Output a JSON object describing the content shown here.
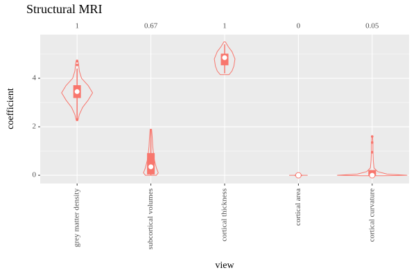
{
  "chart_data": {
    "type": "violin",
    "title": "Structural MRI",
    "x_label": "view",
    "y_label": "coefficient",
    "categories": [
      "grey matter density",
      "subcortical volumes",
      "cortical thickness",
      "cortical area",
      "cortical curvature"
    ],
    "annotations": [
      "1",
      "0.67",
      "1",
      "0",
      "0.05"
    ],
    "color": "#f8766d",
    "violins": [
      {
        "y": [
          2.25,
          2.5,
          2.8,
          3.1,
          3.4,
          3.7,
          4.0,
          4.3,
          4.6,
          4.75
        ],
        "width": [
          0.02,
          0.06,
          0.15,
          0.3,
          0.42,
          0.3,
          0.12,
          0.06,
          0.04,
          0.02
        ]
      },
      {
        "y": [
          0,
          0.1,
          0.3,
          0.6,
          0.9,
          1.2,
          1.5,
          1.9
        ],
        "width": [
          0.15,
          0.2,
          0.15,
          0.1,
          0.07,
          0.05,
          0.04,
          0.02
        ]
      },
      {
        "y": [
          4.15,
          4.3,
          4.5,
          4.8,
          5.1,
          5.3,
          5.5
        ],
        "width": [
          0.12,
          0.2,
          0.25,
          0.28,
          0.2,
          0.1,
          0.02
        ]
      },
      {
        "y": [
          0
        ],
        "width": [
          0.25
        ]
      },
      {
        "y": [
          -0.02,
          0,
          0.05,
          0.15,
          0.3,
          0.6,
          1.0,
          1.3,
          1.6
        ],
        "width": [
          0.3,
          0.95,
          0.4,
          0.15,
          0.05,
          0.03,
          0.02,
          0.02,
          0.01
        ]
      }
    ],
    "boxes": [
      {
        "lower": 2.3,
        "q1": 3.2,
        "median": 3.45,
        "q3": 3.7,
        "upper": 4.4,
        "mean": 3.45,
        "outliers": [
          4.55,
          4.7,
          2.3
        ]
      },
      {
        "lower": 0,
        "q1": 0.05,
        "median": 0.25,
        "q3": 0.9,
        "upper": 1.9,
        "mean": 0.35,
        "outliers": []
      },
      {
        "lower": 4.2,
        "q1": 4.55,
        "median": 4.8,
        "q3": 5.0,
        "upper": 5.4,
        "mean": 4.85,
        "outliers": []
      },
      {
        "lower": 0,
        "q1": 0,
        "median": 0,
        "q3": 0,
        "upper": 0,
        "mean": 0,
        "outliers": []
      },
      {
        "lower": 0,
        "q1": 0,
        "median": 0.02,
        "q3": 0.2,
        "upper": 0.2,
        "mean": 0,
        "outliers": [
          0.95,
          1.35,
          1.6
        ]
      }
    ],
    "ylim": [
      -0.34,
      5.8
    ],
    "yticks": [
      0,
      2,
      4
    ],
    "minor_yticks": [
      1,
      3,
      5
    ],
    "grid": true
  }
}
